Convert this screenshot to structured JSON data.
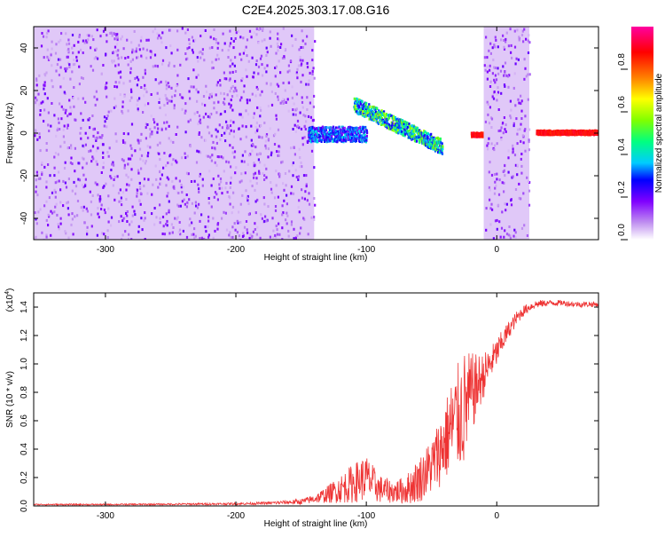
{
  "title": "C2E4.2025.303.17.08.G16",
  "chart_data": [
    {
      "type": "heatmap",
      "xlabel": "Height of straight line (km)",
      "ylabel": "Frequency (Hz)",
      "xlim": [
        -355,
        78
      ],
      "ylim": [
        -50,
        50
      ],
      "x_ticks": [
        -300,
        -200,
        -100,
        0
      ],
      "y_ticks": [
        -40,
        -20,
        0,
        20,
        40
      ],
      "x_tick_labels": [
        "-300",
        "-200",
        "-100",
        "0"
      ],
      "y_tick_labels": [
        "-40",
        "-20",
        "0",
        "20",
        "40"
      ],
      "colorbar": {
        "label": "Normalized spectral amplitude",
        "range": [
          0,
          1
        ],
        "ticks": [
          0,
          0.2,
          0.4,
          0.6,
          0.8
        ],
        "tick_labels": [
          "0.0",
          "0.2",
          "0.4",
          "0.6",
          "0.8"
        ],
        "colors": [
          "#ffffff",
          "#c090f0",
          "#8000ff",
          "#0000ff",
          "#00ccff",
          "#00ff80",
          "#80ff00",
          "#ffff00",
          "#ff8000",
          "#ff0000",
          "#ff00a0"
        ]
      },
      "features": [
        {
          "x_range": [
            -355,
            -140
          ],
          "y_range": [
            -50,
            50
          ],
          "amplitude": 0.15
        },
        {
          "x_range": [
            -145,
            -100
          ],
          "y_center": 0,
          "amplitude": 0.35
        },
        {
          "x_range": [
            -110,
            -42
          ],
          "y_start": 14,
          "y_end": -6,
          "amplitude": 0.5
        },
        {
          "x_range": [
            -20,
            -10
          ],
          "y_center": 0,
          "amplitude": 0.95
        },
        {
          "x_range": [
            -10,
            25
          ],
          "y_range": [
            -50,
            50
          ],
          "amplitude": 0.15
        },
        {
          "x_range": [
            30,
            78
          ],
          "y_center": 1,
          "amplitude": 0.95
        }
      ]
    },
    {
      "type": "line",
      "xlabel": "Height of straight line (km)",
      "ylabel": "SNR (10 * v/v)",
      "y_multiplier_label": "(x10",
      "y_multiplier_exp": "4",
      "xlim": [
        -355,
        78
      ],
      "ylim": [
        0,
        1.5
      ],
      "x_ticks": [
        -300,
        -200,
        -100,
        0
      ],
      "y_ticks": [
        0,
        0.2,
        0.4,
        0.6,
        0.8,
        1.0,
        1.2,
        1.4
      ],
      "x_tick_labels": [
        "-300",
        "-200",
        "-100",
        "0"
      ],
      "y_tick_labels": [
        "0.0",
        "0.2",
        "0.4",
        "0.6",
        "0.8",
        "1.0",
        "1.2",
        "1.4"
      ],
      "series": [
        {
          "color": "#ee3333",
          "x": [
            -355,
            -300,
            -250,
            -200,
            -175,
            -150,
            -140,
            -130,
            -120,
            -110,
            -100,
            -90,
            -80,
            -70,
            -60,
            -50,
            -45,
            -40,
            -35,
            -30,
            -25,
            -20,
            -15,
            -10,
            -5,
            0,
            5,
            10,
            15,
            20,
            25,
            30,
            40,
            50,
            60,
            70,
            78
          ],
          "values": [
            0.01,
            0.01,
            0.012,
            0.015,
            0.02,
            0.03,
            0.05,
            0.08,
            0.12,
            0.16,
            0.2,
            0.12,
            0.1,
            0.11,
            0.18,
            0.28,
            0.36,
            0.45,
            0.55,
            0.62,
            0.68,
            0.78,
            0.85,
            0.92,
            1.0,
            1.08,
            1.17,
            1.25,
            1.32,
            1.37,
            1.4,
            1.42,
            1.43,
            1.43,
            1.42,
            1.42,
            1.42
          ],
          "spread": [
            0.005,
            0.005,
            0.006,
            0.008,
            0.01,
            0.02,
            0.03,
            0.06,
            0.1,
            0.14,
            0.16,
            0.1,
            0.08,
            0.1,
            0.16,
            0.2,
            0.24,
            0.28,
            0.34,
            0.38,
            0.42,
            0.3,
            0.22,
            0.16,
            0.12,
            0.1,
            0.08,
            0.06,
            0.05,
            0.04,
            0.03,
            0.03,
            0.02,
            0.02,
            0.02,
            0.02,
            0.02
          ]
        }
      ]
    }
  ]
}
